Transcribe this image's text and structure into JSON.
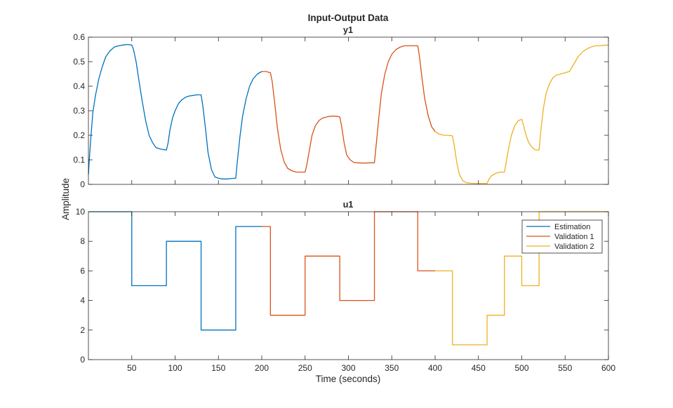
{
  "chart_data": [
    {
      "type": "line",
      "title": "Input-Output Data",
      "subtitle": "y1",
      "ylabel": "Amplitude",
      "xlim": [
        0,
        600
      ],
      "ylim": [
        0,
        0.6
      ],
      "yticks": [
        "0",
        "0.1",
        "0.2",
        "0.3",
        "0.4",
        "0.5",
        "0.6"
      ],
      "grid": false,
      "series": [
        {
          "name": "Estimation",
          "color": "#0072BD",
          "x": [
            0,
            1,
            3,
            5,
            8,
            12,
            16,
            20,
            25,
            30,
            35,
            40,
            45,
            50,
            52,
            55,
            58,
            62,
            66,
            70,
            74,
            78,
            82,
            86,
            90,
            92,
            94,
            97,
            100,
            104,
            108,
            112,
            116,
            120,
            125,
            130,
            132,
            135,
            138,
            142,
            146,
            150,
            155,
            160,
            165,
            170,
            172,
            175,
            178,
            182,
            186,
            190,
            195,
            200
          ],
          "y": [
            0.04,
            0.1,
            0.2,
            0.29,
            0.36,
            0.43,
            0.48,
            0.52,
            0.545,
            0.56,
            0.565,
            0.568,
            0.57,
            0.568,
            0.55,
            0.5,
            0.43,
            0.34,
            0.26,
            0.2,
            0.17,
            0.15,
            0.145,
            0.142,
            0.14,
            0.17,
            0.22,
            0.27,
            0.3,
            0.33,
            0.345,
            0.355,
            0.36,
            0.362,
            0.365,
            0.365,
            0.32,
            0.23,
            0.13,
            0.06,
            0.03,
            0.025,
            0.022,
            0.022,
            0.024,
            0.025,
            0.1,
            0.2,
            0.28,
            0.35,
            0.4,
            0.43,
            0.45,
            0.46
          ]
        },
        {
          "name": "Validation 1",
          "color": "#D95319",
          "x": [
            200,
            205,
            210,
            212,
            215,
            218,
            222,
            226,
            230,
            235,
            240,
            245,
            250,
            252,
            255,
            258,
            262,
            266,
            270,
            275,
            280,
            285,
            290,
            292,
            295,
            298,
            302,
            306,
            310,
            315,
            320,
            325,
            330,
            332,
            335,
            338,
            342,
            346,
            350,
            355,
            360,
            365,
            370,
            375,
            380,
            382,
            385,
            388,
            392,
            396,
            400
          ],
          "y": [
            0.46,
            0.46,
            0.455,
            0.42,
            0.33,
            0.23,
            0.14,
            0.09,
            0.065,
            0.055,
            0.05,
            0.05,
            0.05,
            0.08,
            0.14,
            0.2,
            0.24,
            0.26,
            0.27,
            0.275,
            0.278,
            0.278,
            0.275,
            0.24,
            0.17,
            0.12,
            0.1,
            0.09,
            0.088,
            0.087,
            0.087,
            0.088,
            0.088,
            0.16,
            0.27,
            0.37,
            0.45,
            0.5,
            0.53,
            0.55,
            0.56,
            0.565,
            0.565,
            0.565,
            0.565,
            0.52,
            0.43,
            0.35,
            0.28,
            0.235,
            0.215
          ]
        },
        {
          "name": "Validation 2",
          "color": "#EDB120",
          "x": [
            400,
            405,
            410,
            415,
            420,
            422,
            425,
            428,
            432,
            436,
            440,
            445,
            450,
            455,
            460,
            462,
            465,
            470,
            475,
            480,
            482,
            485,
            488,
            492,
            496,
            500,
            502,
            505,
            508,
            512,
            516,
            520,
            522,
            525,
            528,
            532,
            536,
            540,
            545,
            550,
            555,
            560,
            565,
            570,
            575,
            580,
            585,
            590,
            595,
            600
          ],
          "y": [
            0.215,
            0.205,
            0.2,
            0.2,
            0.198,
            0.16,
            0.09,
            0.04,
            0.015,
            0.007,
            0.005,
            0.004,
            0.004,
            0.004,
            0.004,
            0.02,
            0.035,
            0.045,
            0.05,
            0.05,
            0.09,
            0.15,
            0.2,
            0.24,
            0.26,
            0.265,
            0.24,
            0.2,
            0.17,
            0.15,
            0.14,
            0.14,
            0.22,
            0.31,
            0.37,
            0.41,
            0.435,
            0.445,
            0.45,
            0.455,
            0.46,
            0.49,
            0.52,
            0.54,
            0.552,
            0.56,
            0.565,
            0.565,
            0.567,
            0.568
          ]
        }
      ]
    },
    {
      "type": "line",
      "subtitle": "u1",
      "xlabel": "Time (seconds)",
      "ylabel": "Amplitude",
      "xlim": [
        0,
        600
      ],
      "ylim": [
        0,
        10
      ],
      "xticks": [
        "50",
        "100",
        "150",
        "200",
        "250",
        "300",
        "350",
        "400",
        "450",
        "500",
        "550",
        "600"
      ],
      "yticks": [
        "0",
        "2",
        "4",
        "6",
        "8",
        "10"
      ],
      "grid": false,
      "legend_position": "top-right",
      "series": [
        {
          "name": "Estimation",
          "color": "#0072BD",
          "x": [
            0,
            50,
            50,
            90,
            90,
            130,
            130,
            170,
            170,
            200
          ],
          "y": [
            10,
            10,
            5,
            5,
            8,
            8,
            2,
            2,
            9,
            9
          ]
        },
        {
          "name": "Validation 1",
          "color": "#D95319",
          "x": [
            200,
            210,
            210,
            250,
            250,
            290,
            290,
            330,
            330,
            380,
            380,
            400
          ],
          "y": [
            9,
            9,
            3,
            3,
            7,
            7,
            4,
            4,
            10,
            10,
            6,
            6
          ]
        },
        {
          "name": "Validation 2",
          "color": "#EDB120",
          "x": [
            400,
            420,
            420,
            460,
            460,
            480,
            480,
            500,
            500,
            520,
            520,
            560,
            560,
            600
          ],
          "y": [
            6,
            6,
            1,
            1,
            3,
            3,
            7,
            7,
            5,
            5,
            10,
            10,
            10,
            10
          ]
        }
      ]
    }
  ]
}
